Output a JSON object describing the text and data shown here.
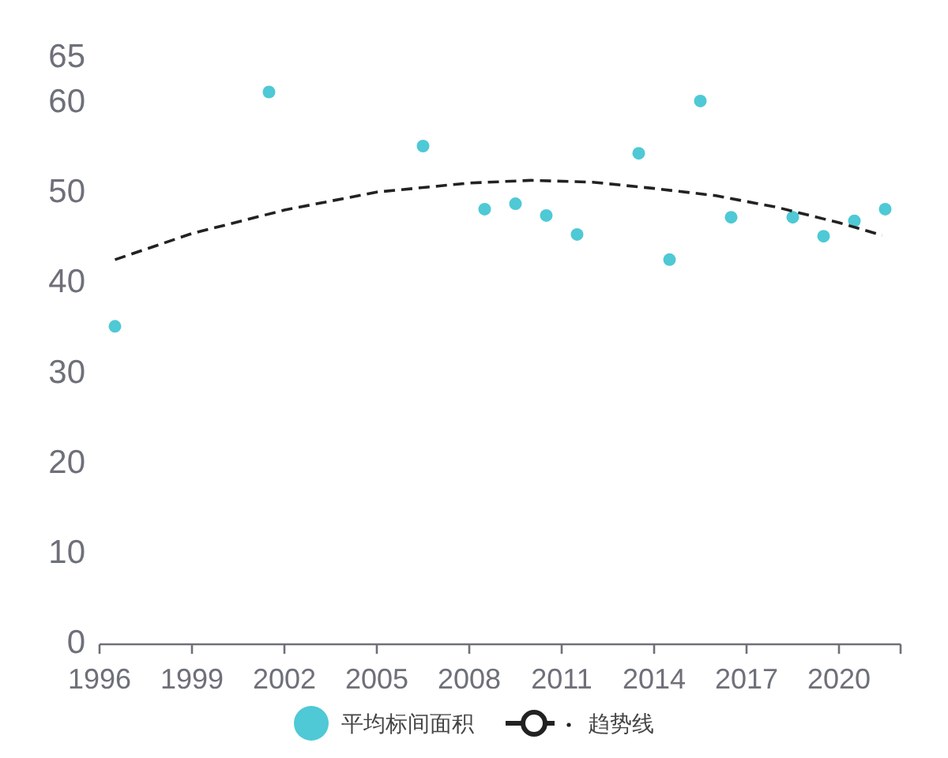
{
  "chart_data": {
    "type": "scatter",
    "series": [
      {
        "name": "平均标间面积",
        "type": "scatter",
        "color": "#4ec9d5",
        "marker": "circle",
        "x": [
          1996.5,
          2001.5,
          2006.5,
          2008.5,
          2009.5,
          2010.5,
          2011.5,
          2013.5,
          2014.5,
          2015.5,
          2016.5,
          2018.5,
          2019.5,
          2020.5,
          2021.5
        ],
        "values": [
          35.1,
          61.1,
          55.1,
          48.1,
          48.7,
          47.4,
          45.3,
          54.3,
          42.5,
          60.1,
          47.2,
          47.2,
          45.1,
          46.8,
          48.1
        ]
      },
      {
        "name": "趋势线",
        "type": "line",
        "color": "#222222",
        "marker": "none",
        "line_style": "dashed",
        "x": [
          1996.5,
          1999,
          2002,
          2005,
          2008,
          2010,
          2012,
          2014,
          2016,
          2018,
          2020,
          2021.4
        ],
        "values": [
          42.5,
          45.4,
          48.0,
          50.0,
          51.0,
          51.3,
          51.1,
          50.4,
          49.6,
          48.3,
          46.6,
          45.2
        ]
      }
    ],
    "xlim": [
      1996,
      2022
    ],
    "xticks": [
      1996,
      1999,
      2002,
      2005,
      2008,
      2011,
      2014,
      2017,
      2020,
      {
        "value": 2022,
        "label": null
      }
    ],
    "ylim": [
      0,
      65
    ],
    "yticks": [
      0,
      10,
      20,
      30,
      40,
      50,
      60,
      65
    ],
    "legend": "bottom"
  }
}
